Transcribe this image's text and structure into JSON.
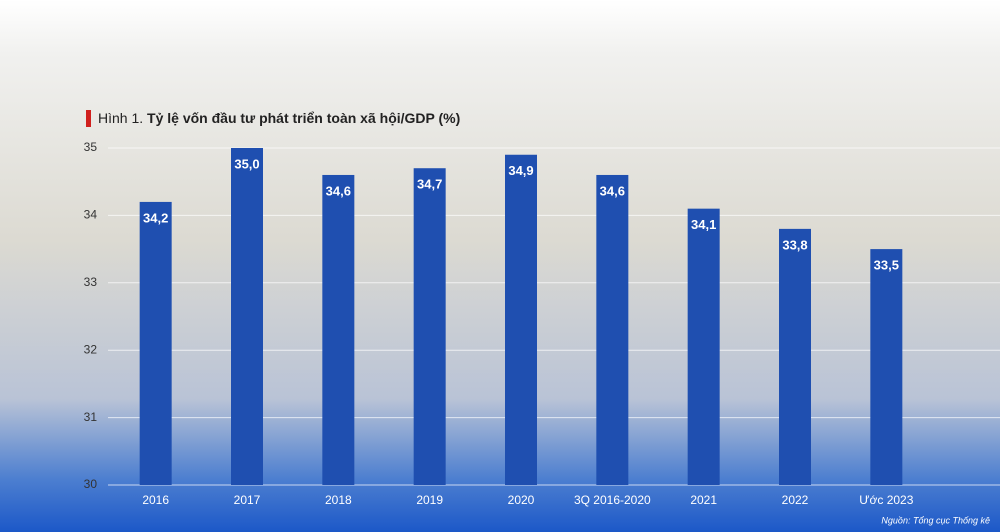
{
  "chart_data": {
    "type": "bar",
    "figure_label": "Hình 1.",
    "title": "Tỷ lệ vốn đầu tư phát triển toàn xã hội/GDP (%)",
    "source": "Nguồn: Tổng cục Thống kê",
    "categories": [
      "2016",
      "2017",
      "2018",
      "2019",
      "2020",
      "3Q 2016-2020",
      "2021",
      "2022",
      "Ước 2023"
    ],
    "values": [
      34.2,
      35.0,
      34.6,
      34.7,
      34.9,
      34.6,
      34.1,
      33.8,
      33.5
    ],
    "value_labels": [
      "34,2",
      "35,0",
      "34,6",
      "34,7",
      "34,9",
      "34,6",
      "34,1",
      "33,8",
      "33,5"
    ],
    "color": "#1f4fb0",
    "ylim": [
      30,
      35
    ],
    "yticks": [
      30,
      31,
      32,
      33,
      34,
      35
    ],
    "grid": true
  }
}
